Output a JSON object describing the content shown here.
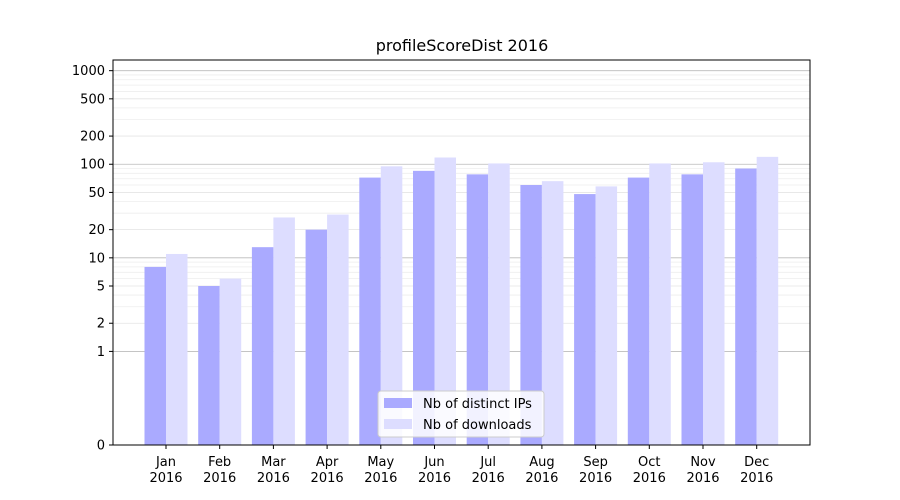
{
  "chart_data": {
    "type": "bar",
    "title": "profileScoreDist 2016",
    "xlabel": "",
    "ylabel": "",
    "y_scale": "symlog",
    "ylim": [
      0,
      1300
    ],
    "y_ticks": [
      0,
      1,
      2,
      5,
      10,
      20,
      50,
      100,
      200,
      500,
      1000
    ],
    "y_tick_labels": [
      "0",
      "1",
      "2",
      "5",
      "10",
      "20",
      "50",
      "100",
      "200",
      "500",
      "1000"
    ],
    "grid": "y, major and minor",
    "legend_position": "bottom-center",
    "categories": [
      "Jan\n2016",
      "Feb\n2016",
      "Mar\n2016",
      "Apr\n2016",
      "May\n2016",
      "Jun\n2016",
      "Jul\n2016",
      "Aug\n2016",
      "Sep\n2016",
      "Oct\n2016",
      "Nov\n2016",
      "Dec\n2016"
    ],
    "series": [
      {
        "name": "Nb of distinct IPs",
        "color": "#aaaaff",
        "values": [
          8,
          5,
          13,
          20,
          72,
          85,
          78,
          60,
          48,
          72,
          78,
          90
        ]
      },
      {
        "name": "Nb of downloads",
        "color": "#ddddff",
        "values": [
          11,
          6,
          27,
          29,
          95,
          118,
          102,
          66,
          58,
          102,
          105,
          120
        ]
      }
    ]
  }
}
